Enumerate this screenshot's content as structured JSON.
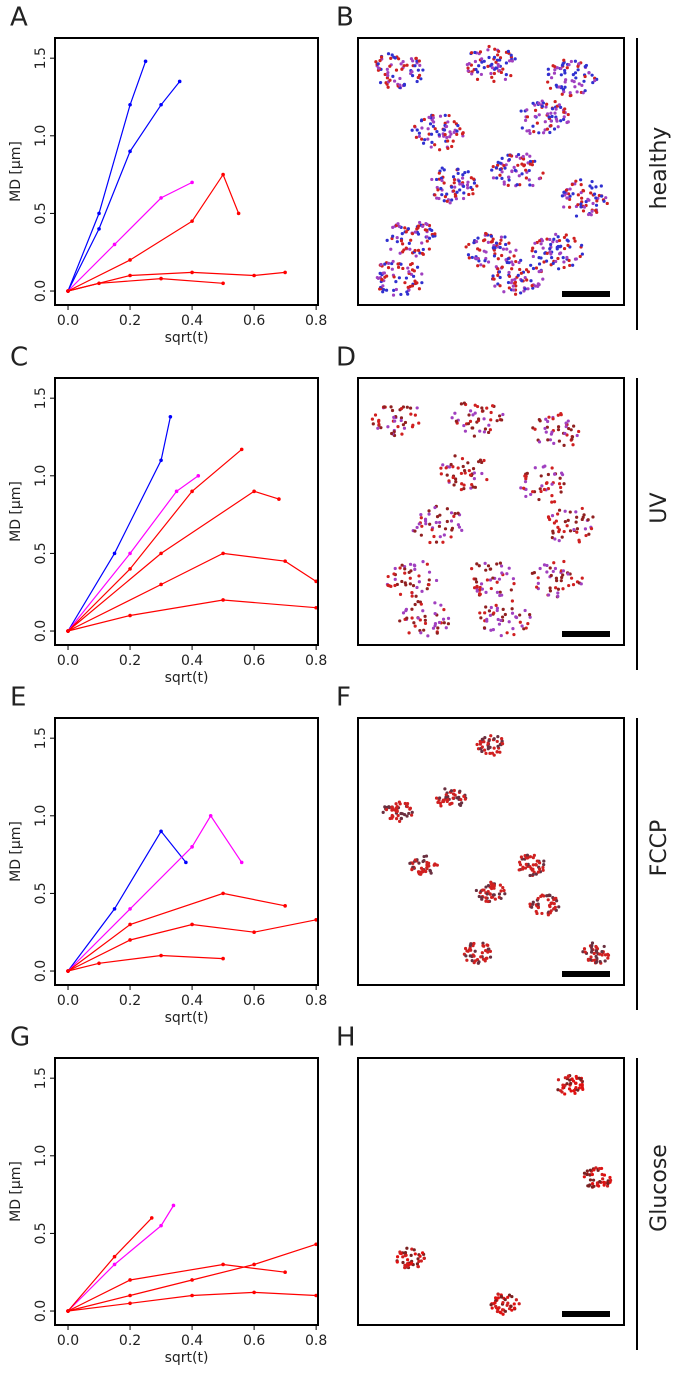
{
  "chart_data": [
    {
      "type": "line",
      "panel": "A",
      "xlabel": "sqrt(t)",
      "ylabel": "MD [µm]",
      "xlim": [
        -0.042,
        0.806
      ],
      "ylim": [
        -0.09,
        1.63
      ],
      "xticks": [
        {
          "value": 0,
          "label": "0.0"
        },
        {
          "value": 0.2,
          "label": "0.2"
        },
        {
          "value": 0.4,
          "label": "0.4"
        },
        {
          "value": 0.6,
          "label": "0.6"
        },
        {
          "value": 0.8,
          "label": "0.8"
        }
      ],
      "yticks": [
        {
          "value": 0,
          "label": "0.0"
        },
        {
          "value": 0.5,
          "label": "0.5"
        },
        {
          "value": 1,
          "label": "1.0"
        },
        {
          "value": 1.5,
          "label": "1.5"
        }
      ],
      "series": [
        {
          "color": "#0000ff",
          "x": [
            0,
            0.1,
            0.2,
            0.25
          ],
          "values": [
            0,
            0.5,
            1.2,
            1.48
          ]
        },
        {
          "color": "#0000ff",
          "x": [
            0,
            0.1,
            0.2,
            0.3,
            0.36
          ],
          "values": [
            0,
            0.4,
            0.9,
            1.2,
            1.35
          ]
        },
        {
          "color": "#ff00ff",
          "x": [
            0,
            0.15,
            0.3,
            0.4
          ],
          "values": [
            0,
            0.3,
            0.6,
            0.7
          ]
        },
        {
          "color": "#ff0000",
          "x": [
            0,
            0.2,
            0.4,
            0.5,
            0.55
          ],
          "values": [
            0,
            0.2,
            0.45,
            0.75,
            0.5
          ]
        },
        {
          "color": "#ff0000",
          "x": [
            0,
            0.2,
            0.4,
            0.6,
            0.7
          ],
          "values": [
            0,
            0.1,
            0.12,
            0.1,
            0.12
          ]
        },
        {
          "color": "#ff0000",
          "x": [
            0,
            0.1,
            0.3,
            0.5
          ],
          "values": [
            0,
            0.05,
            0.08,
            0.05
          ]
        }
      ]
    },
    {
      "type": "line",
      "panel": "C",
      "xlabel": "sqrt(t)",
      "ylabel": "MD [µm]",
      "xlim": [
        -0.042,
        0.806
      ],
      "ylim": [
        -0.09,
        1.63
      ],
      "xticks": [
        {
          "value": 0,
          "label": "0.0"
        },
        {
          "value": 0.2,
          "label": "0.2"
        },
        {
          "value": 0.4,
          "label": "0.4"
        },
        {
          "value": 0.6,
          "label": "0.6"
        },
        {
          "value": 0.8,
          "label": "0.8"
        }
      ],
      "yticks": [
        {
          "value": 0,
          "label": "0.0"
        },
        {
          "value": 0.5,
          "label": "0.5"
        },
        {
          "value": 1,
          "label": "1.0"
        },
        {
          "value": 1.5,
          "label": "1.5"
        }
      ],
      "series": [
        {
          "color": "#0000ff",
          "x": [
            0,
            0.15,
            0.3,
            0.33
          ],
          "values": [
            0,
            0.5,
            1.1,
            1.38
          ]
        },
        {
          "color": "#ff00ff",
          "x": [
            0,
            0.2,
            0.35,
            0.42
          ],
          "values": [
            0,
            0.5,
            0.9,
            1.0
          ]
        },
        {
          "color": "#ff0000",
          "x": [
            0,
            0.2,
            0.4,
            0.56
          ],
          "values": [
            0,
            0.4,
            0.9,
            1.17
          ]
        },
        {
          "color": "#ff0000",
          "x": [
            0,
            0.3,
            0.5,
            0.7,
            0.8
          ],
          "values": [
            0,
            0.3,
            0.5,
            0.45,
            0.32
          ]
        },
        {
          "color": "#ff0000",
          "x": [
            0,
            0.2,
            0.5,
            0.8
          ],
          "values": [
            0,
            0.1,
            0.2,
            0.15
          ]
        },
        {
          "color": "#ff0000",
          "x": [
            0,
            0.3,
            0.6,
            0.68
          ],
          "values": [
            0,
            0.5,
            0.9,
            0.85
          ]
        }
      ]
    },
    {
      "type": "line",
      "panel": "E",
      "xlabel": "sqrt(t)",
      "ylabel": "MD [µm]",
      "xlim": [
        -0.042,
        0.806
      ],
      "ylim": [
        -0.09,
        1.63
      ],
      "xticks": [
        {
          "value": 0,
          "label": "0.0"
        },
        {
          "value": 0.2,
          "label": "0.2"
        },
        {
          "value": 0.4,
          "label": "0.4"
        },
        {
          "value": 0.6,
          "label": "0.6"
        },
        {
          "value": 0.8,
          "label": "0.8"
        }
      ],
      "yticks": [
        {
          "value": 0,
          "label": "0.0"
        },
        {
          "value": 0.5,
          "label": "0.5"
        },
        {
          "value": 1,
          "label": "1.0"
        },
        {
          "value": 1.5,
          "label": "1.5"
        }
      ],
      "series": [
        {
          "color": "#0000ff",
          "x": [
            0,
            0.15,
            0.3,
            0.38
          ],
          "values": [
            0,
            0.4,
            0.9,
            0.7
          ]
        },
        {
          "color": "#ff00ff",
          "x": [
            0,
            0.2,
            0.4,
            0.46,
            0.56
          ],
          "values": [
            0,
            0.4,
            0.8,
            1.0,
            0.7
          ]
        },
        {
          "color": "#ff0000",
          "x": [
            0,
            0.2,
            0.4,
            0.6,
            0.8
          ],
          "values": [
            0,
            0.2,
            0.3,
            0.25,
            0.33
          ]
        },
        {
          "color": "#ff0000",
          "x": [
            0,
            0.2,
            0.5,
            0.7
          ],
          "values": [
            0,
            0.3,
            0.5,
            0.42
          ]
        },
        {
          "color": "#ff0000",
          "x": [
            0,
            0.1,
            0.3,
            0.5
          ],
          "values": [
            0,
            0.05,
            0.1,
            0.08
          ]
        }
      ]
    },
    {
      "type": "line",
      "panel": "G",
      "xlabel": "sqrt(t)",
      "ylabel": "MD [µm]",
      "xlim": [
        -0.042,
        0.806
      ],
      "ylim": [
        -0.09,
        1.63
      ],
      "xticks": [
        {
          "value": 0,
          "label": "0.0"
        },
        {
          "value": 0.2,
          "label": "0.2"
        },
        {
          "value": 0.4,
          "label": "0.4"
        },
        {
          "value": 0.6,
          "label": "0.6"
        },
        {
          "value": 0.8,
          "label": "0.8"
        }
      ],
      "yticks": [
        {
          "value": 0,
          "label": "0.0"
        },
        {
          "value": 0.5,
          "label": "0.5"
        },
        {
          "value": 1,
          "label": "1.0"
        },
        {
          "value": 1.5,
          "label": "1.5"
        }
      ],
      "series": [
        {
          "color": "#ff00ff",
          "x": [
            0,
            0.15,
            0.3,
            0.34
          ],
          "values": [
            0,
            0.3,
            0.55,
            0.68
          ]
        },
        {
          "color": "#ff0000",
          "x": [
            0,
            0.15,
            0.27
          ],
          "values": [
            0,
            0.35,
            0.6
          ]
        },
        {
          "color": "#ff0000",
          "x": [
            0,
            0.2,
            0.4,
            0.6,
            0.8
          ],
          "values": [
            0,
            0.1,
            0.2,
            0.3,
            0.43
          ]
        },
        {
          "color": "#ff0000",
          "x": [
            0,
            0.2,
            0.4,
            0.6,
            0.8
          ],
          "values": [
            0,
            0.05,
            0.1,
            0.12,
            0.1
          ]
        },
        {
          "color": "#ff0000",
          "x": [
            0,
            0.2,
            0.5,
            0.7
          ],
          "values": [
            0,
            0.2,
            0.3,
            0.25
          ]
        }
      ]
    }
  ],
  "images": [
    {
      "panel": "B",
      "label": "healthy"
    },
    {
      "panel": "D",
      "label": "UV"
    },
    {
      "panel": "F",
      "label": "FCCP"
    },
    {
      "panel": "H",
      "label": "Glucose"
    }
  ]
}
